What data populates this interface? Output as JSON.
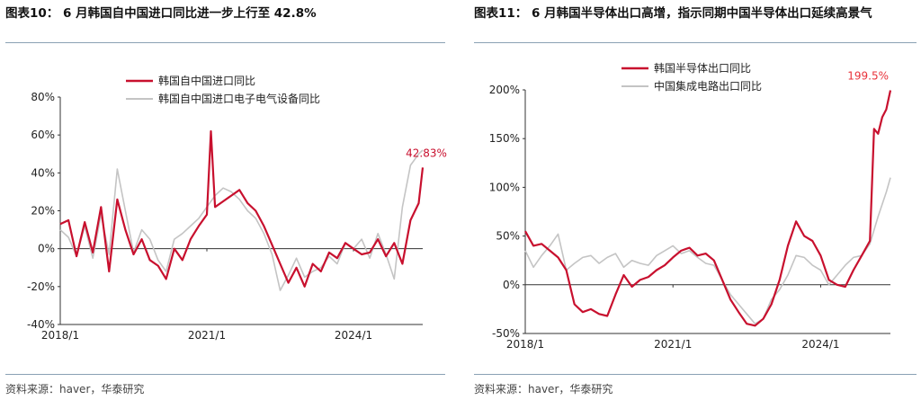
{
  "charts": [
    {
      "title": "图表10：  6 月韩国自中国进口同比进一步上行至 42.8%",
      "source": "资料来源：haver，华泰研究",
      "chart_data": {
        "type": "line",
        "x_ticks": [
          "2018/1",
          "2021/1",
          "2024/1"
        ],
        "y_ticks": [
          "80%",
          "60%",
          "40%",
          "20%",
          "0%",
          "-20%",
          "-40%"
        ],
        "ylim": [
          -40,
          80
        ],
        "x_range": [
          "2018/1",
          "2025/6"
        ],
        "legend_position": "top-center",
        "grid": false,
        "annotation": "42.83%",
        "series": [
          {
            "name": "韩国自中国进口同比",
            "color": "#c8102e",
            "x": [
              "2018/1",
              "2018/3",
              "2018/5",
              "2018/7",
              "2018/9",
              "2018/11",
              "2019/1",
              "2019/3",
              "2019/5",
              "2019/7",
              "2019/9",
              "2019/11",
              "2020/1",
              "2020/3",
              "2020/5",
              "2020/7",
              "2020/9",
              "2020/11",
              "2021/1",
              "2021/2",
              "2021/3",
              "2021/5",
              "2021/7",
              "2021/9",
              "2021/11",
              "2022/1",
              "2022/3",
              "2022/5",
              "2022/7",
              "2022/9",
              "2022/11",
              "2023/1",
              "2023/3",
              "2023/5",
              "2023/7",
              "2023/9",
              "2023/11",
              "2024/1",
              "2024/3",
              "2024/5",
              "2024/7",
              "2024/9",
              "2024/11",
              "2025/1",
              "2025/3",
              "2025/5",
              "2025/6"
            ],
            "values": [
              13,
              15,
              -4,
              14,
              -2,
              22,
              -12,
              26,
              10,
              -3,
              5,
              -6,
              -9,
              -16,
              0,
              -6,
              5,
              12,
              18,
              62,
              22,
              25,
              28,
              31,
              24,
              20,
              12,
              2,
              -8,
              -18,
              -10,
              -20,
              -8,
              -12,
              -2,
              -5,
              3,
              0,
              -3,
              -2,
              5,
              -4,
              3,
              -8,
              15,
              24,
              42.83
            ]
          },
          {
            "name": "韩国自中国进口电子电气设备同比",
            "color": "#c4c4c4",
            "x": [
              "2018/1",
              "2018/3",
              "2018/5",
              "2018/7",
              "2018/9",
              "2018/11",
              "2019/1",
              "2019/3",
              "2019/5",
              "2019/7",
              "2019/9",
              "2019/11",
              "2020/1",
              "2020/3",
              "2020/5",
              "2020/7",
              "2020/9",
              "2020/11",
              "2021/1",
              "2021/3",
              "2021/5",
              "2021/7",
              "2021/9",
              "2021/11",
              "2022/1",
              "2022/3",
              "2022/5",
              "2022/7",
              "2022/9",
              "2022/11",
              "2023/1",
              "2023/3",
              "2023/5",
              "2023/7",
              "2023/9",
              "2023/11",
              "2024/1",
              "2024/3",
              "2024/5",
              "2024/7",
              "2024/9",
              "2024/11",
              "2025/1",
              "2025/3",
              "2025/5",
              "2025/6"
            ],
            "values": [
              10,
              6,
              -4,
              12,
              -5,
              18,
              -3,
              42,
              20,
              -2,
              10,
              5,
              -6,
              -12,
              5,
              8,
              12,
              16,
              22,
              28,
              32,
              30,
              26,
              20,
              16,
              8,
              -3,
              -22,
              -14,
              -5,
              -15,
              -12,
              -10,
              -4,
              -8,
              3,
              0,
              5,
              -5,
              8,
              -3,
              -16,
              22,
              44,
              50,
              52
            ]
          }
        ]
      }
    },
    {
      "title": "图表11：  6 月韩国半导体出口高增，指示同期中国半导体出口延续高景气",
      "source": "资料来源：haver，华泰研究",
      "chart_data": {
        "type": "line",
        "x_ticks": [
          "2018/1",
          "2021/1",
          "2024/1"
        ],
        "y_ticks": [
          "200%",
          "150%",
          "100%",
          "50%",
          "0%",
          "-50%"
        ],
        "ylim": [
          -50,
          200
        ],
        "x_range": [
          "2018/1",
          "2025/6"
        ],
        "legend_position": "top-center",
        "grid": false,
        "annotation": "199.5%",
        "series": [
          {
            "name": "韩国半导体出口同比",
            "color": "#c8102e",
            "x": [
              "2018/1",
              "2018/3",
              "2018/5",
              "2018/7",
              "2018/9",
              "2018/11",
              "2019/1",
              "2019/3",
              "2019/5",
              "2019/7",
              "2019/9",
              "2019/11",
              "2020/1",
              "2020/3",
              "2020/5",
              "2020/7",
              "2020/9",
              "2020/11",
              "2021/1",
              "2021/3",
              "2021/5",
              "2021/7",
              "2021/9",
              "2021/11",
              "2022/1",
              "2022/3",
              "2022/5",
              "2022/7",
              "2022/9",
              "2022/11",
              "2023/1",
              "2023/3",
              "2023/5",
              "2023/7",
              "2023/9",
              "2023/11",
              "2024/1",
              "2024/3",
              "2024/5",
              "2024/7",
              "2024/9",
              "2024/11",
              "2025/1",
              "2025/2",
              "2025/3",
              "2025/4",
              "2025/5",
              "2025/6"
            ],
            "values": [
              55,
              40,
              42,
              35,
              28,
              15,
              -20,
              -28,
              -25,
              -30,
              -32,
              -10,
              10,
              -2,
              5,
              8,
              15,
              20,
              28,
              35,
              38,
              30,
              32,
              25,
              5,
              -15,
              -28,
              -40,
              -42,
              -35,
              -20,
              5,
              40,
              65,
              50,
              45,
              30,
              5,
              0,
              -2,
              15,
              30,
              45,
              160,
              155,
              172,
              180,
              199.5
            ]
          },
          {
            "name": "中国集成电路出口同比",
            "color": "#c4c4c4",
            "x": [
              "2018/1",
              "2018/3",
              "2018/5",
              "2018/7",
              "2018/9",
              "2018/11",
              "2019/1",
              "2019/3",
              "2019/5",
              "2019/7",
              "2019/9",
              "2019/11",
              "2020/1",
              "2020/3",
              "2020/5",
              "2020/7",
              "2020/9",
              "2020/11",
              "2021/1",
              "2021/3",
              "2021/5",
              "2021/7",
              "2021/9",
              "2021/11",
              "2022/1",
              "2022/3",
              "2022/5",
              "2022/7",
              "2022/9",
              "2022/11",
              "2023/1",
              "2023/3",
              "2023/5",
              "2023/7",
              "2023/9",
              "2023/11",
              "2024/1",
              "2024/3",
              "2024/5",
              "2024/7",
              "2024/9",
              "2024/11",
              "2025/1",
              "2025/3",
              "2025/5",
              "2025/6"
            ],
            "values": [
              35,
              18,
              30,
              40,
              52,
              15,
              22,
              28,
              30,
              22,
              28,
              32,
              18,
              25,
              22,
              20,
              30,
              35,
              40,
              32,
              35,
              28,
              22,
              20,
              5,
              -10,
              -20,
              -30,
              -40,
              -35,
              -15,
              -5,
              10,
              30,
              28,
              20,
              15,
              0,
              10,
              20,
              28,
              30,
              42,
              70,
              95,
              110
            ]
          }
        ]
      }
    }
  ]
}
